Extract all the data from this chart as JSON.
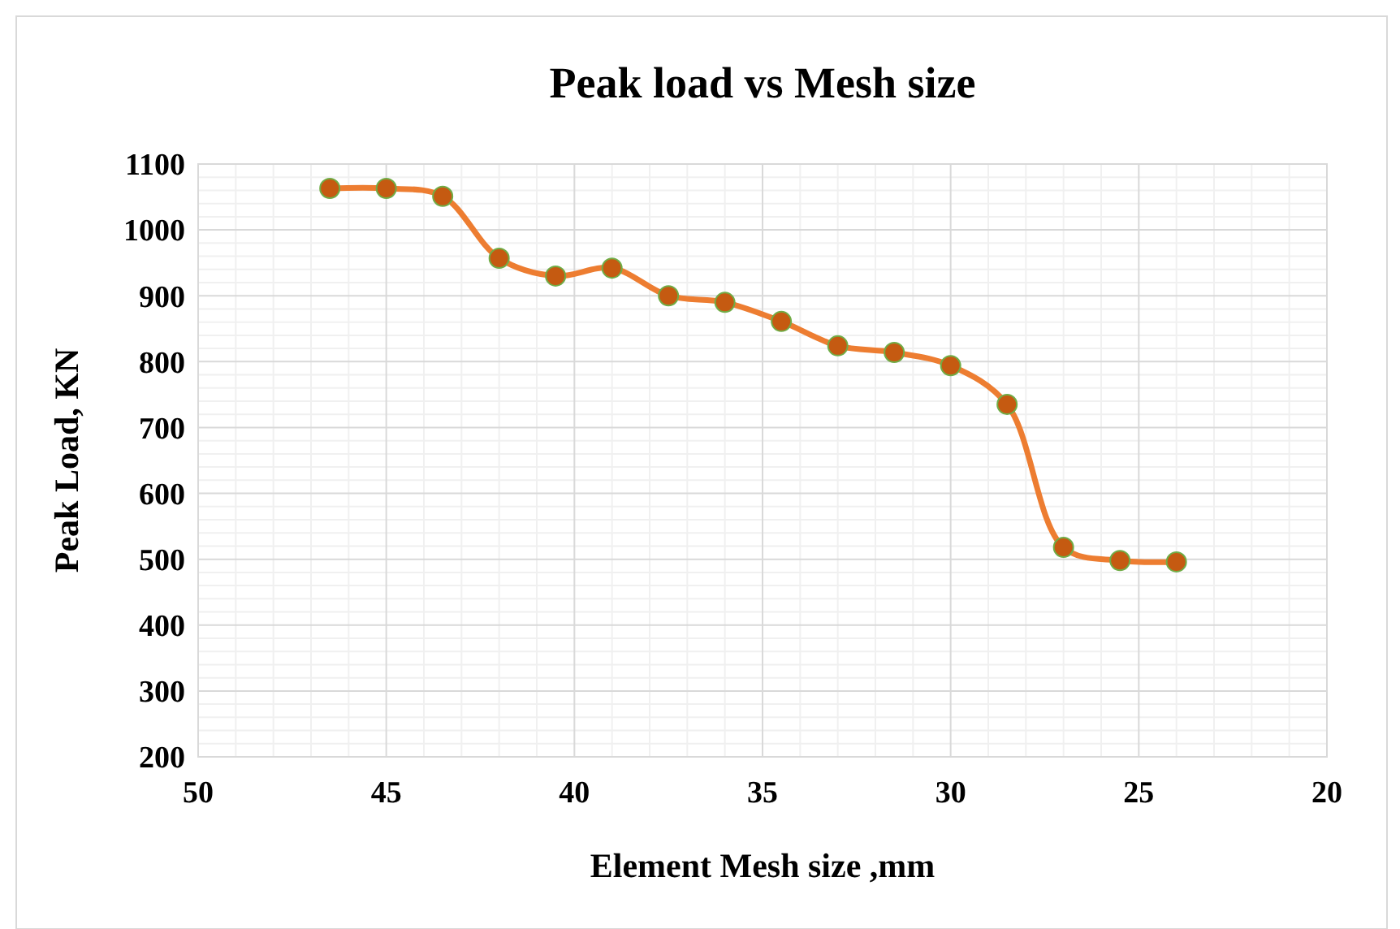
{
  "chart_data": {
    "type": "line",
    "title": "Peak load vs Mesh size",
    "xlabel": "Element Mesh size ,mm",
    "ylabel": "Peak Load, KN",
    "x": [
      46.5,
      45,
      43.5,
      42,
      40.5,
      39,
      37.5,
      36,
      34.5,
      33,
      31.5,
      30,
      28.5,
      27,
      25.5,
      24
    ],
    "series": [
      {
        "color": "#ed7d31",
        "values": [
          1063,
          1063,
          1051,
          957,
          930,
          942,
          900,
          890,
          861,
          824,
          814,
          794,
          735,
          518,
          498,
          496
        ]
      }
    ],
    "xlim": [
      50,
      20
    ],
    "xticks": [
      50,
      45,
      40,
      35,
      30,
      25,
      20
    ],
    "ylim": [
      200,
      1100
    ],
    "yticks": [
      200,
      300,
      400,
      500,
      600,
      700,
      800,
      900,
      1000,
      1100
    ],
    "grid": true,
    "marker": "circle",
    "line_style": "solid"
  }
}
